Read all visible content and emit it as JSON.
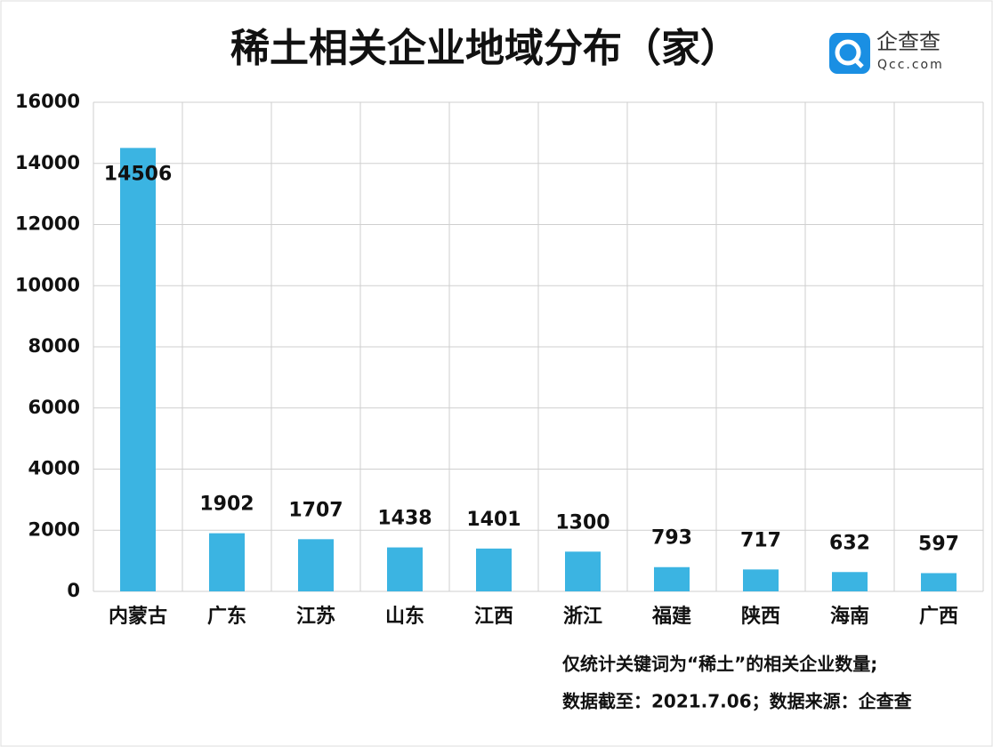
{
  "chart_data": {
    "type": "bar",
    "title": "稀土相关企业地域分布（家）",
    "logo": {
      "name": "企查查",
      "site": "Qcc.com"
    },
    "categories": [
      "内蒙古",
      "广东",
      "江苏",
      "山东",
      "江西",
      "浙江",
      "福建",
      "陕西",
      "海南",
      "广西"
    ],
    "values": [
      14506,
      1902,
      1707,
      1438,
      1401,
      1300,
      793,
      717,
      632,
      597
    ],
    "color": "#3bb4e2",
    "ylim": [
      0,
      16000
    ],
    "yticks": [
      0,
      2000,
      4000,
      6000,
      8000,
      10000,
      12000,
      14000,
      16000
    ],
    "grid": true,
    "notes": [
      "仅统计关键词为“稀土”的相关企业数量;",
      "数据截至：2021.7.06；数据来源：企查查"
    ]
  }
}
